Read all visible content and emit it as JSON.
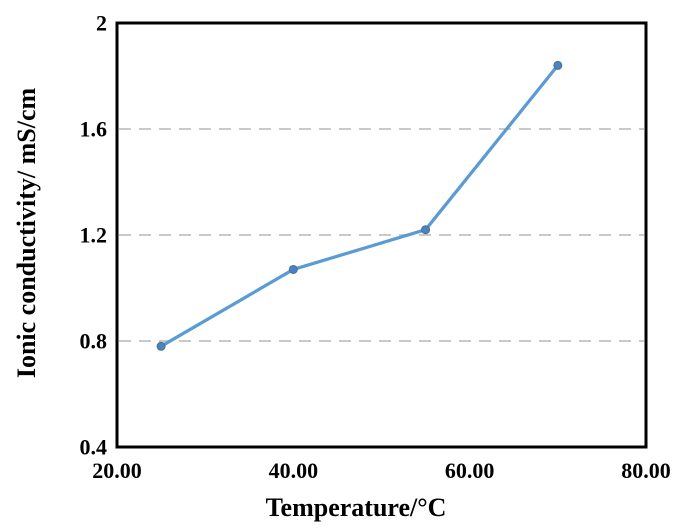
{
  "figure": {
    "background_color": "#ffffff"
  },
  "chart_data": {
    "type": "line",
    "title": "",
    "xlabel": "Temperature/°C",
    "ylabel": "Ionic conductivity/ mS/cm",
    "x": [
      25,
      40,
      55,
      70
    ],
    "y": [
      0.78,
      1.07,
      1.22,
      1.84
    ],
    "xlim": [
      20,
      80
    ],
    "ylim": [
      0.4,
      2.0
    ],
    "x_ticks": [
      {
        "value": 20,
        "label": "20.00"
      },
      {
        "value": 40,
        "label": "40.00"
      },
      {
        "value": 60,
        "label": "60.00"
      },
      {
        "value": 80,
        "label": "80.00"
      }
    ],
    "y_ticks": [
      {
        "value": 2.0,
        "label": "2"
      },
      {
        "value": 1.6,
        "label": "1.6"
      },
      {
        "value": 1.2,
        "label": "1.2"
      },
      {
        "value": 0.8,
        "label": "0.8"
      },
      {
        "value": 0.4,
        "label": "0.4"
      }
    ],
    "gridline_y_values": [
      1.6,
      1.2,
      0.8
    ],
    "grid_style": "dashed-horizontal",
    "legend": "none",
    "colors": {
      "line": "#5B9BD5",
      "marker_fill": "#4D82BC",
      "marker_edge": "#41719C",
      "gridline": "#C9C9C9",
      "axis_box": "#000000",
      "text": "#000000"
    }
  }
}
